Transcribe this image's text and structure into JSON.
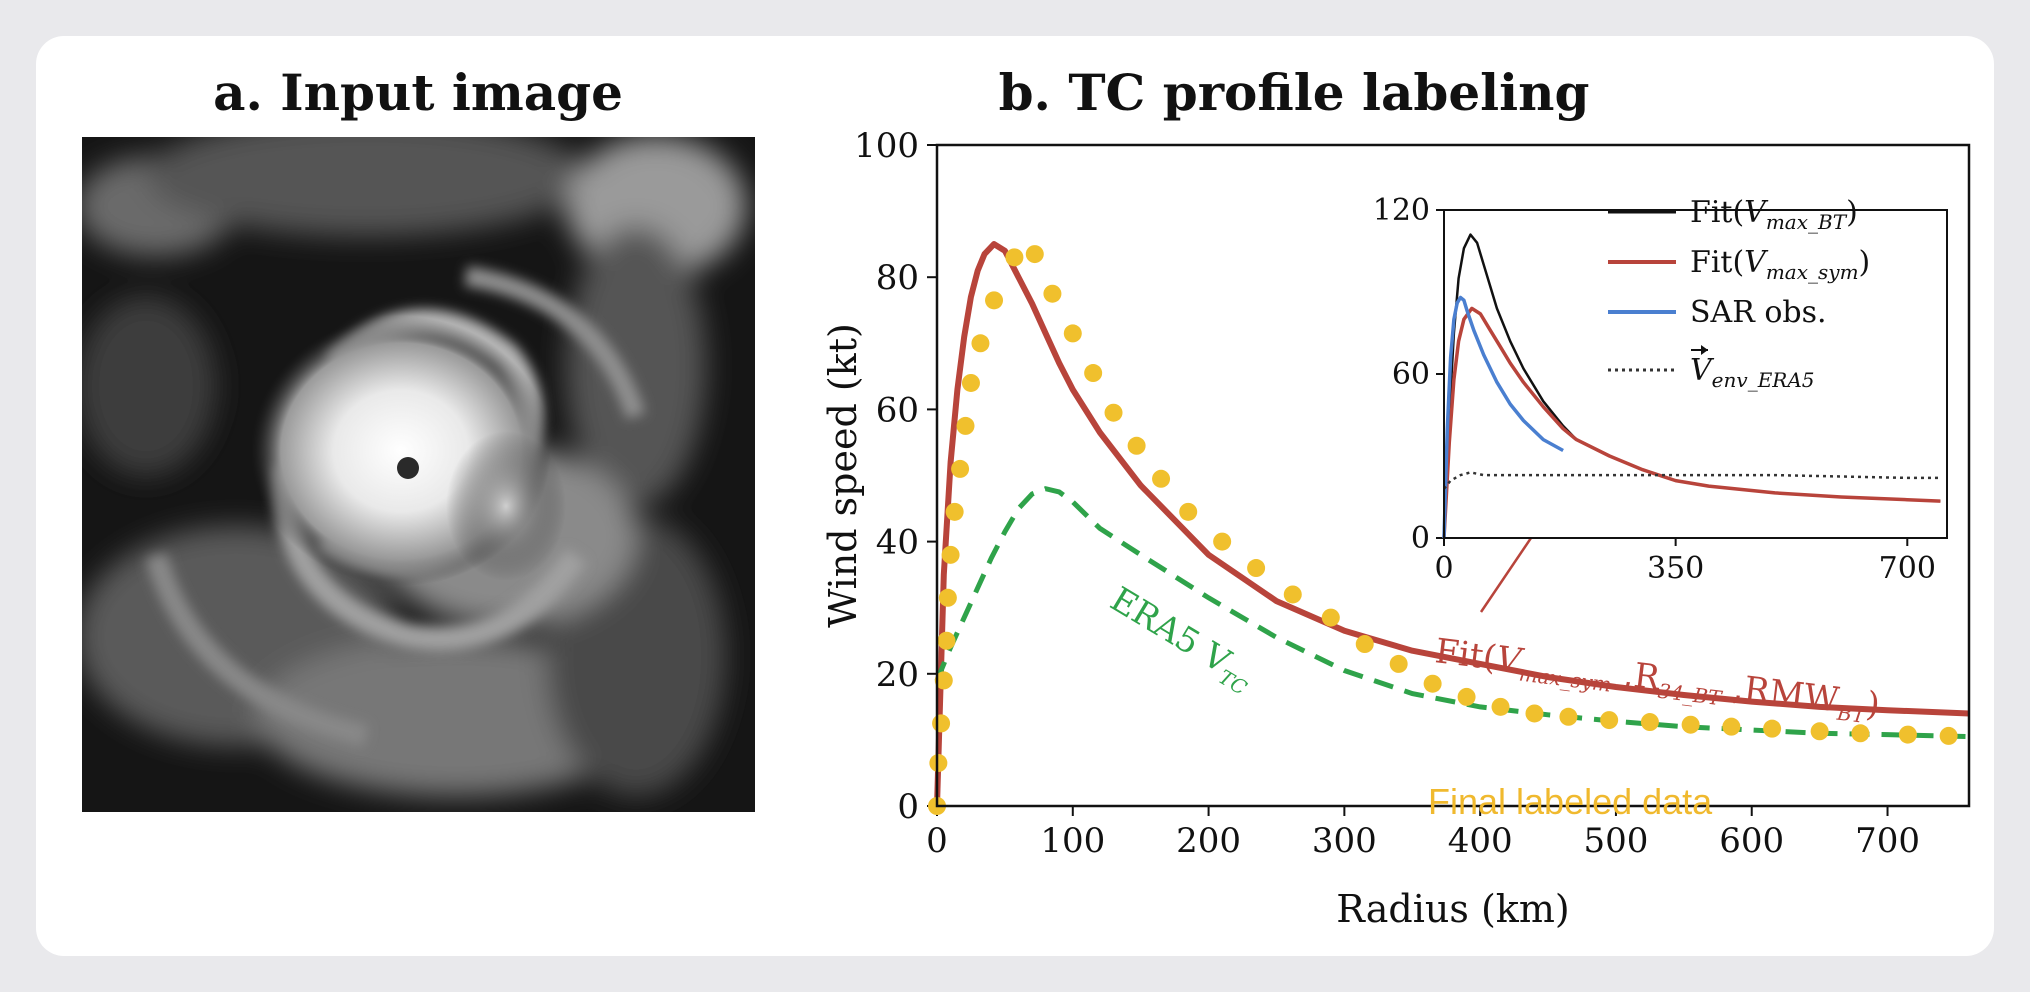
{
  "panel_a": {
    "title": "a. Input image"
  },
  "panel_b": {
    "title": "b. TC profile labeling"
  },
  "colors": {
    "fit_rmw": "#b8443b",
    "era5": "#2fa34a",
    "final": "#f0c02d",
    "fit_bt": "#111111",
    "sar": "#4a7fd0",
    "env": "#333333"
  },
  "chart_data": [
    {
      "type": "line",
      "xlabel": "Radius (km)",
      "ylabel": "Wind speed (kt)",
      "xlim": [
        0,
        760
      ],
      "ylim": [
        0,
        100
      ],
      "xticks": [
        0,
        100,
        200,
        300,
        400,
        500,
        600,
        700
      ],
      "yticks": [
        0,
        20,
        40,
        60,
        80,
        100
      ],
      "series": [
        {
          "name": "Fit(Vmax_sym ,R34_BT ,RMWBT)",
          "style": "solid",
          "x": [
            0,
            5,
            10,
            15,
            20,
            25,
            30,
            35,
            42,
            50,
            60,
            70,
            80,
            90,
            100,
            120,
            150,
            200,
            250,
            300,
            350,
            400,
            450,
            500,
            550,
            600,
            650,
            700,
            760
          ],
          "y": [
            0,
            35,
            52,
            63,
            71,
            77,
            81,
            83.5,
            85,
            84,
            80,
            76,
            71.5,
            67,
            63,
            56.5,
            48.5,
            38,
            31,
            26.5,
            23.5,
            21.5,
            19.5,
            18,
            16.8,
            15.8,
            15,
            14.5,
            14
          ]
        },
        {
          "name": "ERA5 VTC",
          "style": "dashed",
          "x": [
            0,
            3,
            10,
            20,
            30,
            40,
            50,
            60,
            70,
            80,
            90,
            100,
            120,
            150,
            200,
            250,
            300,
            350,
            400,
            450,
            500,
            550,
            600,
            650,
            700,
            760
          ],
          "y": [
            19,
            20.5,
            24,
            28.5,
            33,
            37.5,
            41.5,
            45,
            47.2,
            48,
            47.5,
            46,
            42,
            38,
            31.5,
            25.5,
            20.5,
            17,
            15,
            13.8,
            12.8,
            12,
            11.5,
            11,
            10.8,
            10.5
          ]
        },
        {
          "name": "Final labeled data",
          "style": "dots",
          "x": [
            0,
            1,
            3,
            5,
            7,
            8,
            10,
            13,
            17,
            21,
            25,
            32,
            42,
            57,
            72,
            85,
            100,
            115,
            130,
            147,
            165,
            185,
            210,
            235,
            262,
            290,
            315,
            340,
            365,
            390,
            415,
            440,
            465,
            495,
            525,
            555,
            585,
            615,
            650,
            680,
            715,
            745
          ],
          "y": [
            0,
            6.5,
            12.5,
            19,
            25,
            31.5,
            38,
            44.5,
            51,
            57.5,
            64,
            70,
            76.5,
            83,
            83.5,
            77.5,
            71.5,
            65.5,
            59.5,
            54.5,
            49.5,
            44.5,
            40,
            36,
            32,
            28.5,
            24.5,
            21.5,
            18.5,
            16.5,
            15,
            14,
            13.5,
            13,
            12.7,
            12.3,
            12,
            11.7,
            11.3,
            11,
            10.8,
            10.6
          ]
        }
      ],
      "annotations": {
        "fit_label_prefix": "Fit(",
        "fit_label_v": "V",
        "fit_label_v_sub": "max_sym",
        "fit_label_r": " ,R",
        "fit_label_r_sub": "34_BT",
        "fit_label_rmw": " ,RMW",
        "fit_label_rmw_sub": "BT",
        "fit_label_suffix": ")",
        "era5_label": "ERA5 V",
        "era5_label_sub": "TC",
        "final_label": "Final labeled data"
      }
    },
    {
      "type": "line",
      "inset": true,
      "xlim": [
        0,
        760
      ],
      "ylim": [
        0,
        120
      ],
      "xticks": [
        0,
        350,
        700
      ],
      "yticks": [
        0,
        60,
        120
      ],
      "legend_position": "top-right",
      "series": [
        {
          "name": "Fit(Vmax_BT)",
          "legend_prefix": "Fit(",
          "legend_v": "V",
          "legend_sub": "max_BT",
          "legend_suffix": ")",
          "x": [
            0,
            8,
            15,
            22,
            30,
            40,
            50,
            60,
            70,
            80,
            100,
            120,
            150,
            180,
            200,
            250,
            300,
            350,
            400,
            500,
            600,
            700,
            750
          ],
          "y": [
            0,
            45,
            75,
            95,
            106,
            111,
            108,
            100,
            92,
            84,
            72,
            62,
            50,
            41,
            36,
            30,
            25,
            21,
            19,
            16.5,
            15,
            14,
            13.5
          ]
        },
        {
          "name": "Fit(Vmax_sym)",
          "legend_prefix": "Fit(",
          "legend_v": "V",
          "legend_sub": "max_sym",
          "legend_suffix": ")",
          "x": [
            0,
            8,
            15,
            22,
            30,
            42,
            55,
            70,
            85,
            100,
            120,
            150,
            180,
            200,
            250,
            300,
            350,
            400,
            500,
            600,
            700,
            750
          ],
          "y": [
            0,
            35,
            58,
            72,
            80,
            84,
            82,
            76,
            70,
            64,
            57,
            48,
            40,
            36,
            30,
            25,
            21,
            19,
            16.5,
            15,
            14,
            13.5
          ]
        },
        {
          "name": "SAR obs.",
          "legend_text": "SAR obs.",
          "x": [
            0,
            5,
            10,
            15,
            20,
            25,
            30,
            35,
            45,
            60,
            80,
            100,
            120,
            150,
            180
          ],
          "y": [
            0,
            40,
            66,
            80,
            86,
            88,
            87,
            83,
            76,
            67,
            57,
            49,
            43,
            36,
            32
          ]
        },
        {
          "name": "V env_ERA5",
          "legend_v": "V",
          "legend_sub": "env_ERA5",
          "x": [
            0,
            10,
            25,
            40,
            60,
            100,
            200,
            300,
            400,
            500,
            600,
            700,
            750
          ],
          "y": [
            18,
            21,
            23,
            24,
            23,
            23,
            23,
            23,
            23,
            23,
            22.5,
            22,
            22
          ]
        }
      ]
    }
  ]
}
